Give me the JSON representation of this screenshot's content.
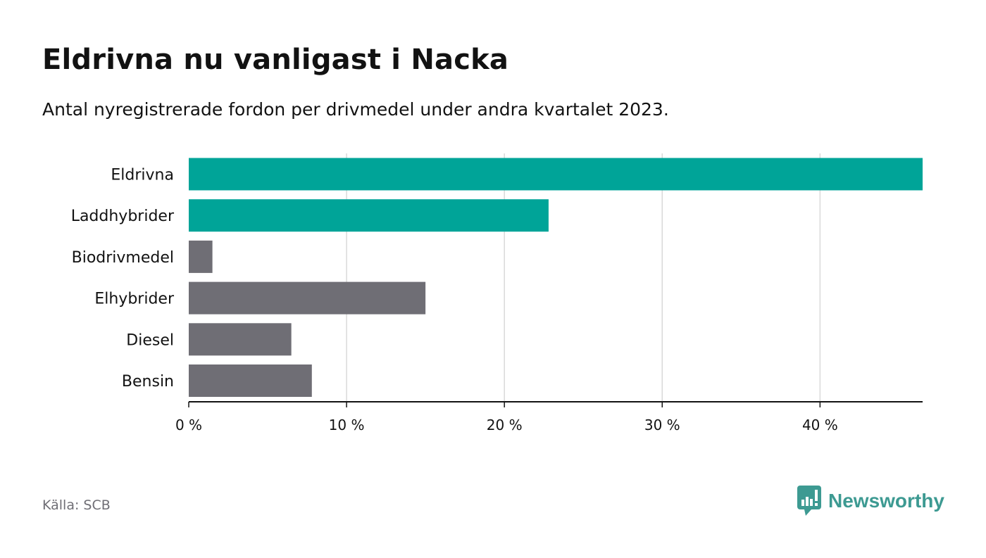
{
  "title": "Eldrivna nu vanligast i Nacka",
  "subtitle": "Antal nyregistrerade fordon per drivmedel under andra kvartalet 2023.",
  "source": "Källa: SCB",
  "brand": {
    "name": "Newsworthy",
    "icon": "newsworthy-logo-icon",
    "color": "#3d9a92"
  },
  "colors": {
    "highlight": "#00a498",
    "default": "#6f6e75",
    "grid": "#d9d9d9",
    "axis": "#121212"
  },
  "chart_data": {
    "type": "bar",
    "orientation": "horizontal",
    "categories": [
      "Eldrivna",
      "Laddhybrider",
      "Biodrivmedel",
      "Elhybrider",
      "Diesel",
      "Bensin"
    ],
    "values": [
      46.5,
      22.8,
      1.5,
      15.0,
      6.5,
      7.8
    ],
    "highlight": [
      true,
      true,
      false,
      false,
      false,
      false
    ],
    "x_ticks": [
      0,
      10,
      20,
      30,
      40
    ],
    "x_tick_labels": [
      "0 %",
      "10 %",
      "20 %",
      "30 %",
      "40 %"
    ],
    "xlim": [
      0,
      46.5
    ],
    "grid": true,
    "xlabel": "",
    "ylabel": ""
  }
}
